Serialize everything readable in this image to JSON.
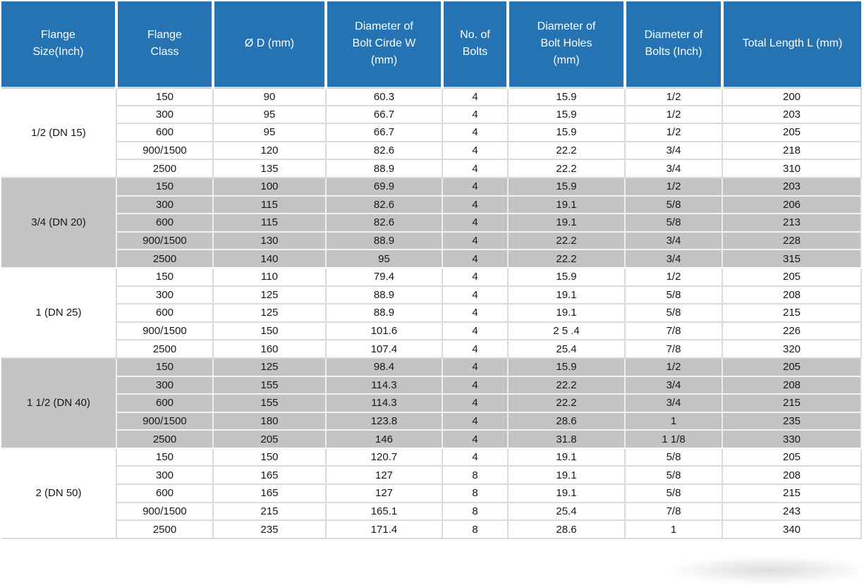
{
  "colors": {
    "header_bg": "#2573B2",
    "header_text": "#FFFFFF",
    "shaded_band": "#C3C3C3",
    "white_band": "#FFFFFF",
    "grid_line": "#D9D9D9",
    "body_text": "#171717"
  },
  "table": {
    "columns": [
      {
        "id": "flange_size",
        "label": "Flange Size(Inch)"
      },
      {
        "id": "flange_class",
        "label": "Flange Class"
      },
      {
        "id": "d_mm",
        "label": "Ø D (mm)"
      },
      {
        "id": "bolt_circle_w",
        "label": "Diameter of Bolt Cirde W (mm)"
      },
      {
        "id": "no_of_bolts",
        "label": "No. of Bolts"
      },
      {
        "id": "bolt_holes",
        "label": "Diameter of Bolt Holes (mm)"
      },
      {
        "id": "bolt_dia_inch",
        "label": "Diameter of Bolts (Inch)"
      },
      {
        "id": "total_length",
        "label": "Total Length L (mm)"
      }
    ],
    "groups": [
      {
        "size": "1/2 (DN 15)",
        "shaded": false,
        "rows": [
          [
            "150",
            "90",
            "60.3",
            "4",
            "15.9",
            "1/2",
            "200"
          ],
          [
            "300",
            "95",
            "66.7",
            "4",
            "15.9",
            "1/2",
            "203"
          ],
          [
            "600",
            "95",
            "66.7",
            "4",
            "15.9",
            "1/2",
            "205"
          ],
          [
            "900/1500",
            "120",
            "82.6",
            "4",
            "22.2",
            "3/4",
            "218"
          ],
          [
            "2500",
            "135",
            "88.9",
            "4",
            "22.2",
            "3/4",
            "310"
          ]
        ]
      },
      {
        "size": "3/4 (DN 20)",
        "shaded": true,
        "rows": [
          [
            "150",
            "100",
            "69.9",
            "4",
            "15.9",
            "1/2",
            "203"
          ],
          [
            "300",
            "115",
            "82.6",
            "4",
            "19.1",
            "5/8",
            "206"
          ],
          [
            "600",
            "115",
            "82.6",
            "4",
            "19.1",
            "5/8",
            "213"
          ],
          [
            "900/1500",
            "130",
            "88.9",
            "4",
            "22.2",
            "3/4",
            "228"
          ],
          [
            "2500",
            "140",
            "95",
            "4",
            "22.2",
            "3/4",
            "315"
          ]
        ]
      },
      {
        "size": "1 (DN 25)",
        "shaded": false,
        "rows": [
          [
            "150",
            "110",
            "79.4",
            "4",
            "15.9",
            "1/2",
            "205"
          ],
          [
            "300",
            "125",
            "88.9",
            "4",
            "19.1",
            "5/8",
            "208"
          ],
          [
            "600",
            "125",
            "88.9",
            "4",
            "19.1",
            "5/8",
            "215"
          ],
          [
            "900/1500",
            "150",
            "101.6",
            "4",
            "2 5 .4",
            "7/8",
            "226"
          ],
          [
            "2500",
            "160",
            "107.4",
            "4",
            "25.4",
            "7/8",
            "320"
          ]
        ]
      },
      {
        "size": "1 1/2 (DN 40)",
        "shaded": true,
        "rows": [
          [
            "150",
            "125",
            "98.4",
            "4",
            "15.9",
            "1/2",
            "205"
          ],
          [
            "300",
            "155",
            "114.3",
            "4",
            "22.2",
            "3/4",
            "208"
          ],
          [
            "600",
            "155",
            "114.3",
            "4",
            "22.2",
            "3/4",
            "215"
          ],
          [
            "900/1500",
            "180",
            "123.8",
            "4",
            "28.6",
            "1",
            "235"
          ],
          [
            "2500",
            "205",
            "146",
            "4",
            "31.8",
            "1 1/8",
            "330"
          ]
        ]
      },
      {
        "size": "2 (DN 50)",
        "shaded": false,
        "rows": [
          [
            "150",
            "150",
            "120.7",
            "4",
            "19.1",
            "5/8",
            "205"
          ],
          [
            "300",
            "165",
            "127",
            "8",
            "19.1",
            "5/8",
            "208"
          ],
          [
            "600",
            "165",
            "127",
            "8",
            "19.1",
            "5/8",
            "215"
          ],
          [
            "900/1500",
            "215",
            "165.1",
            "8",
            "25.4",
            "7/8",
            "243"
          ],
          [
            "2500",
            "235",
            "171.4",
            "8",
            "28.6",
            "1",
            "340"
          ]
        ]
      }
    ]
  }
}
